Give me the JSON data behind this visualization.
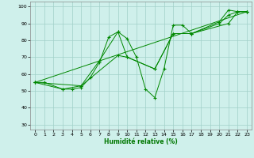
{
  "background_color": "#cff0eb",
  "grid_color": "#a0d0c8",
  "line_color": "#008800",
  "marker_color": "#008800",
  "xlabel": "Humidité relative (%)",
  "xlabel_color": "#007700",
  "xlim": [
    -0.5,
    23.5
  ],
  "ylim": [
    27,
    103
  ],
  "yticks": [
    30,
    40,
    50,
    60,
    70,
    80,
    90,
    100
  ],
  "xticks": [
    0,
    1,
    2,
    3,
    4,
    5,
    6,
    7,
    8,
    9,
    10,
    11,
    12,
    13,
    14,
    15,
    16,
    17,
    18,
    19,
    20,
    21,
    22,
    23
  ],
  "series": [
    {
      "x": [
        0,
        1,
        3,
        4,
        5,
        6,
        7,
        8,
        9,
        10,
        11,
        12,
        13,
        14,
        15,
        16,
        17,
        20,
        21,
        22,
        23
      ],
      "y": [
        55,
        55,
        51,
        51,
        52,
        58,
        67,
        82,
        85,
        81,
        70,
        51,
        46,
        63,
        89,
        89,
        84,
        91,
        98,
        97,
        97
      ]
    },
    {
      "x": [
        0,
        3,
        5,
        7,
        9,
        10,
        13,
        15,
        17,
        20,
        21,
        22,
        23
      ],
      "y": [
        55,
        51,
        53,
        68,
        85,
        70,
        63,
        84,
        84,
        90,
        95,
        97,
        97
      ]
    },
    {
      "x": [
        0,
        5,
        9,
        10,
        13,
        15,
        17,
        21,
        22,
        23
      ],
      "y": [
        55,
        53,
        71,
        70,
        63,
        84,
        84,
        90,
        97,
        97
      ]
    },
    {
      "x": [
        0,
        23
      ],
      "y": [
        55,
        97
      ]
    }
  ]
}
